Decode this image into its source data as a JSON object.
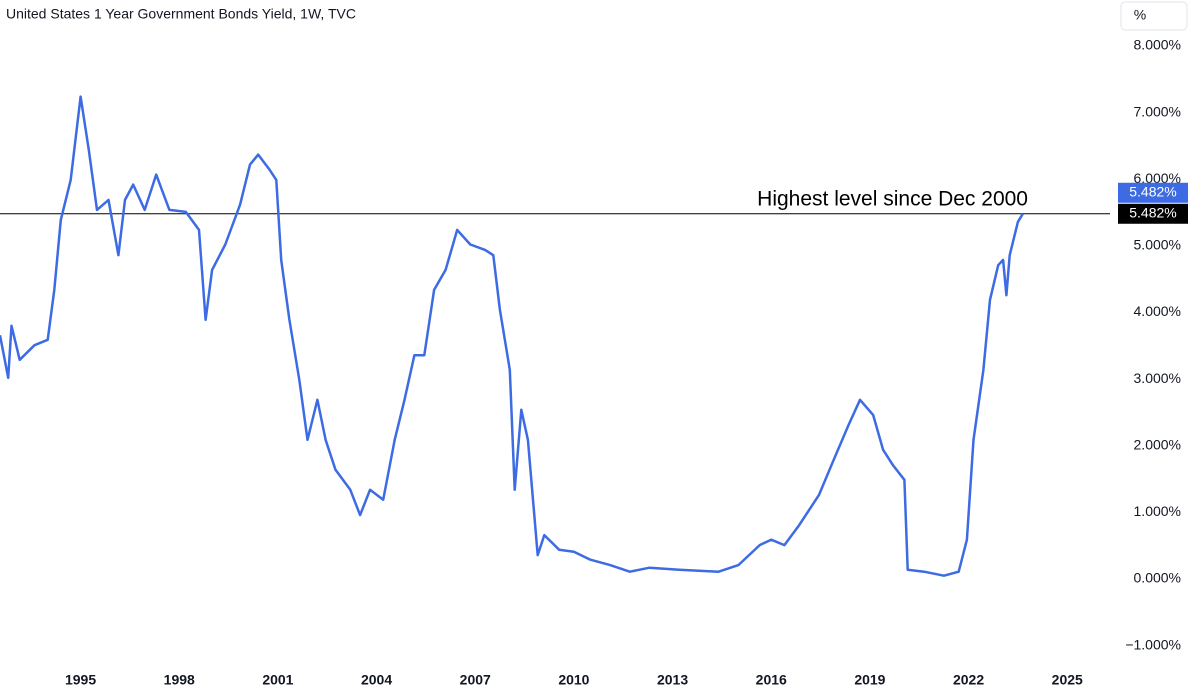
{
  "chart_data": {
    "type": "line",
    "title": "United States 1 Year Government Bonds Yield, 1W, TVC",
    "unit_button": "%",
    "color": "#3d6be3",
    "x": [
      1992.55,
      1992.8,
      1992.9,
      1993.15,
      1993.6,
      1994.0,
      1994.2,
      1994.4,
      1994.7,
      1995.0,
      1995.25,
      1995.5,
      1995.85,
      1996.15,
      1996.35,
      1996.6,
      1996.95,
      1997.3,
      1997.7,
      1998.2,
      1998.6,
      1998.8,
      1999.0,
      1999.4,
      1999.85,
      2000.15,
      2000.4,
      2000.75,
      2000.95,
      2001.1,
      2001.35,
      2001.65,
      2001.9,
      2002.2,
      2002.45,
      2002.75,
      2003.2,
      2003.5,
      2003.8,
      2004.2,
      2004.55,
      2004.85,
      2005.15,
      2005.45,
      2005.75,
      2006.1,
      2006.45,
      2006.85,
      2007.3,
      2007.55,
      2007.75,
      2008.05,
      2008.2,
      2008.4,
      2008.6,
      2008.9,
      2009.1,
      2009.55,
      2010.0,
      2010.5,
      2011.1,
      2011.7,
      2012.3,
      2013.2,
      2014.4,
      2015.0,
      2015.65,
      2016.0,
      2016.4,
      2016.85,
      2017.45,
      2017.9,
      2018.35,
      2018.7,
      2019.1,
      2019.4,
      2019.7,
      2020.05,
      2020.15,
      2020.65,
      2021.25,
      2021.7,
      2021.95,
      2022.15,
      2022.45,
      2022.65,
      2022.9,
      2023.05,
      2023.15,
      2023.25,
      2023.5,
      2023.65
    ],
    "values": [
      3.66,
      3.02,
      3.8,
      3.29,
      3.51,
      3.59,
      4.34,
      5.39,
      5.99,
      7.24,
      6.44,
      5.54,
      5.69,
      4.86,
      5.69,
      5.92,
      5.54,
      6.07,
      5.54,
      5.51,
      5.24,
      3.89,
      4.64,
      5.02,
      5.62,
      6.22,
      6.37,
      6.14,
      5.99,
      4.79,
      3.89,
      2.99,
      2.09,
      2.69,
      2.09,
      1.64,
      1.34,
      0.96,
      1.34,
      1.19,
      2.09,
      2.69,
      3.36,
      3.36,
      4.34,
      4.64,
      5.24,
      5.02,
      4.94,
      4.86,
      4.04,
      3.14,
      1.34,
      2.54,
      2.09,
      0.36,
      0.66,
      0.44,
      0.41,
      0.29,
      0.21,
      0.11,
      0.17,
      0.14,
      0.11,
      0.21,
      0.51,
      0.59,
      0.51,
      0.81,
      1.26,
      1.79,
      2.31,
      2.69,
      2.46,
      1.94,
      1.71,
      1.49,
      0.14,
      0.11,
      0.05,
      0.11,
      0.59,
      2.09,
      3.14,
      4.19,
      4.71,
      4.79,
      4.26,
      4.86,
      5.36,
      5.482
    ],
    "last_value_label": "5.482%",
    "annotation": {
      "text": "Highest level since Dec 2000",
      "value": 5.482,
      "label": "5.482%"
    },
    "xlim": [
      1992.55,
      2026.3
    ],
    "xticks": [
      1995,
      1998,
      2001,
      2004,
      2007,
      2010,
      2013,
      2016,
      2019,
      2022,
      2025
    ],
    "ylim": [
      -1.29,
      8.69
    ],
    "yticks": [
      {
        "value": 8,
        "label": "8.000%"
      },
      {
        "value": 7,
        "label": "7.000%"
      },
      {
        "value": 6,
        "label": "6.000%"
      },
      {
        "value": 5,
        "label": "5.000%"
      },
      {
        "value": 4,
        "label": "4.000%"
      },
      {
        "value": 3,
        "label": "3.000%"
      },
      {
        "value": 2,
        "label": "2.000%"
      },
      {
        "value": 1,
        "label": "1.000%"
      },
      {
        "value": 0,
        "label": "0.000%"
      },
      {
        "value": -1,
        "label": "−1.000%"
      }
    ]
  }
}
